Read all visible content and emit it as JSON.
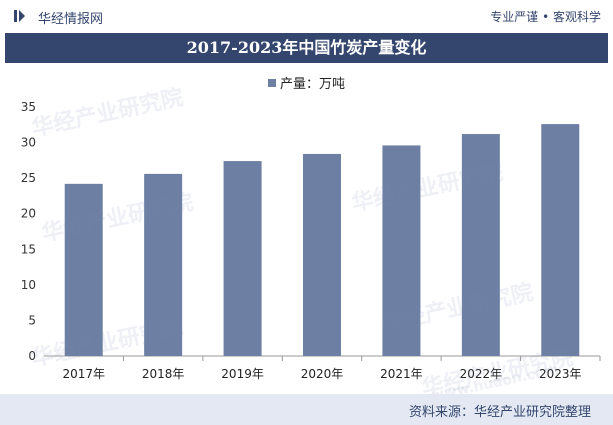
{
  "header": {
    "brand": "华经情报网",
    "tagline": "专业严谨 • 客观科学"
  },
  "title": "2017-2023年中国竹炭产量变化",
  "footer": {
    "source": "资料来源：华经产业研究院整理"
  },
  "watermark": "华经产业研究院",
  "watermark_url": "www.huaon.com",
  "colors": {
    "bar": "#6d7fa3",
    "title_bg": "#34466e",
    "footer_bg": "#e3e8f2"
  },
  "chart_data": {
    "type": "bar",
    "title": "2017-2023年中国竹炭产量变化",
    "categories": [
      "2017年",
      "2018年",
      "2019年",
      "2020年",
      "2021年",
      "2022年",
      "2023年"
    ],
    "series": [
      {
        "name": "产量：万吨",
        "values": [
          24.2,
          25.6,
          27.4,
          28.4,
          29.6,
          31.2,
          32.6
        ]
      }
    ],
    "ylim": [
      0,
      35
    ],
    "yticks": [
      0,
      5,
      10,
      15,
      20,
      25,
      30,
      35
    ],
    "legend": "top-center",
    "grid": false
  }
}
